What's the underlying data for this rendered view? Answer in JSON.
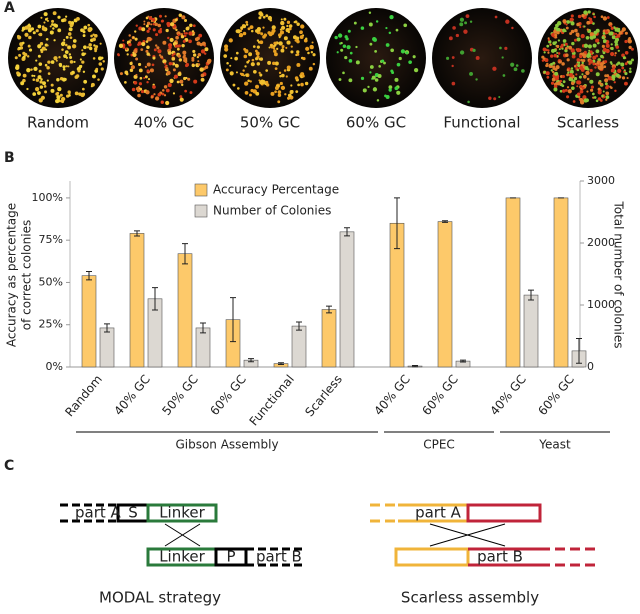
{
  "panel_a": {
    "label": "A",
    "captions": [
      "Random",
      "40% GC",
      "50% GC",
      "60% GC",
      "Functional",
      "Scarless"
    ]
  },
  "chart_data": {
    "type": "bar",
    "label": "B",
    "categories": [
      "Random",
      "40% GC",
      "50% GC",
      "60% GC",
      "Functional",
      "Scarless",
      "40% GC",
      "60% GC",
      "40% GC",
      "60% GC"
    ],
    "groups": [
      {
        "name": "Gibson Assembly",
        "size": 6
      },
      {
        "name": "CPEC",
        "size": 2
      },
      {
        "name": "Yeast",
        "size": 2
      }
    ],
    "y_label": [
      "Accuracy as percentage",
      "of correct colonies"
    ],
    "y2_label": "Total number of colonies",
    "series": [
      {
        "name": "Accuracy Percentage",
        "color": "#fdc96a",
        "values": [
          54,
          79,
          67,
          28,
          2,
          34,
          85,
          86,
          100,
          100
        ],
        "errors": [
          2.5,
          1.5,
          6,
          13,
          0.5,
          2,
          15,
          0.5,
          0,
          0
        ]
      },
      {
        "name": "Number of Colonies",
        "color": "#dcd8d2",
        "axis": "y2",
        "values": [
          630,
          1100,
          630,
          110,
          660,
          2180,
          15,
          95,
          1160,
          260
        ],
        "errors": [
          65,
          180,
          80,
          25,
          65,
          65,
          10,
          15,
          80,
          200
        ]
      }
    ],
    "ylim": [
      0,
      110
    ],
    "yticks": [
      {
        "value": 0,
        "label": "0%"
      },
      {
        "value": 25,
        "label": "25%"
      },
      {
        "value": 50,
        "label": "50%"
      },
      {
        "value": 75,
        "label": "75%"
      },
      {
        "value": 100,
        "label": "100%"
      }
    ],
    "y2lim": [
      0,
      3000
    ],
    "y2ticks": [
      0,
      1000,
      2000,
      3000
    ],
    "legend": "top-left"
  },
  "panel_c": {
    "label": "C",
    "modal": {
      "part_a": "part A",
      "s": "S",
      "linker_top": "Linker",
      "linker_bottom": "Linker",
      "p": "P",
      "part_b": "part B",
      "caption": "MODAL strategy"
    },
    "scarless": {
      "part_a": "part A",
      "part_b": "part B",
      "caption": "Scarless assembly"
    }
  }
}
